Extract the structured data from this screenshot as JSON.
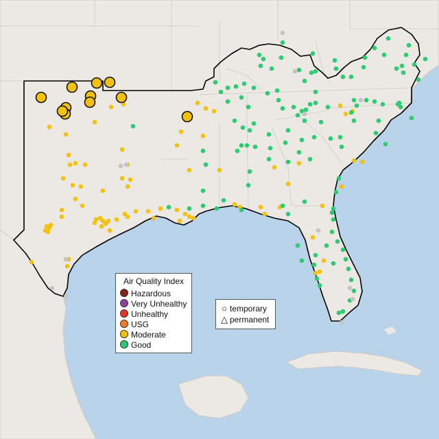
{
  "map": {
    "colors": {
      "water": "#b9d3ea",
      "land": "#ece8e4",
      "borders": "#cfcac6",
      "region_outline": "#000000"
    }
  },
  "legend": {
    "title": "Air Quality Index",
    "categories": [
      {
        "label": "Hazardous",
        "color": "#7e2316"
      },
      {
        "label": "Very Unhealthy",
        "color": "#8f3f97"
      },
      {
        "label": "Unhealthy",
        "color": "#e0352b"
      },
      {
        "label": "USG",
        "color": "#f07e23"
      },
      {
        "label": "Moderate",
        "color": "#f4c20d"
      },
      {
        "label": "Good",
        "color": "#2ecc71"
      }
    ]
  },
  "site_types": {
    "temporary": {
      "label": "temporary",
      "icon": "circle-icon"
    },
    "permanent": {
      "label": "permanent",
      "icon": "triangle-icon"
    }
  },
  "monitor_counts": {
    "moderate_large": 11
  }
}
